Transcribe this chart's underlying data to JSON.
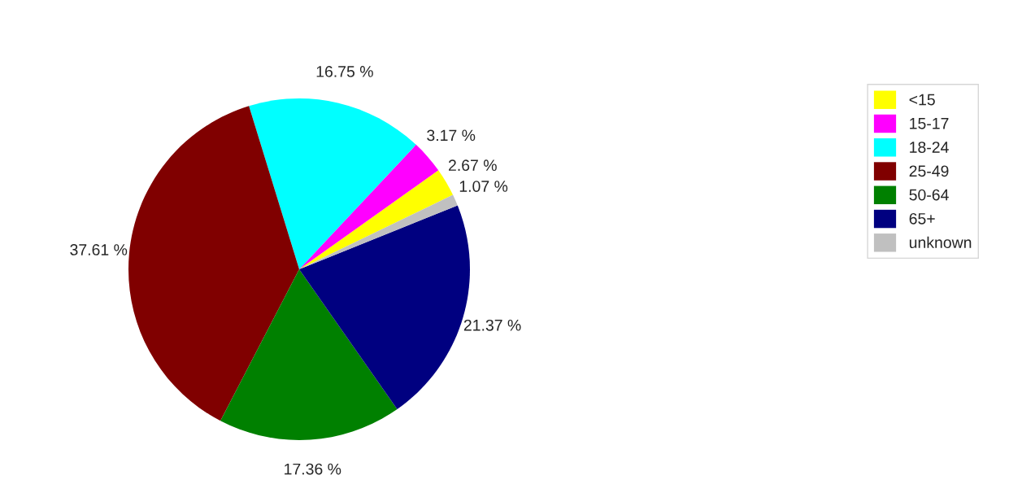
{
  "chart_data": {
    "type": "pie",
    "categories": [
      "<15",
      "15-17",
      "18-24",
      "25-49",
      "50-64",
      "65+",
      "unknown"
    ],
    "values": [
      2.67,
      3.17,
      16.75,
      37.61,
      17.36,
      21.37,
      1.07
    ],
    "value_labels": [
      "2.67 %",
      "3.17 %",
      "16.75 %",
      "37.61 %",
      "17.36 %",
      "21.37 %",
      "1.07 %"
    ],
    "colors": [
      "#ffff00",
      "#ff00ff",
      "#00ffff",
      "#800000",
      "#008000",
      "#000080",
      "#c0c0c0"
    ],
    "legend": "right"
  }
}
